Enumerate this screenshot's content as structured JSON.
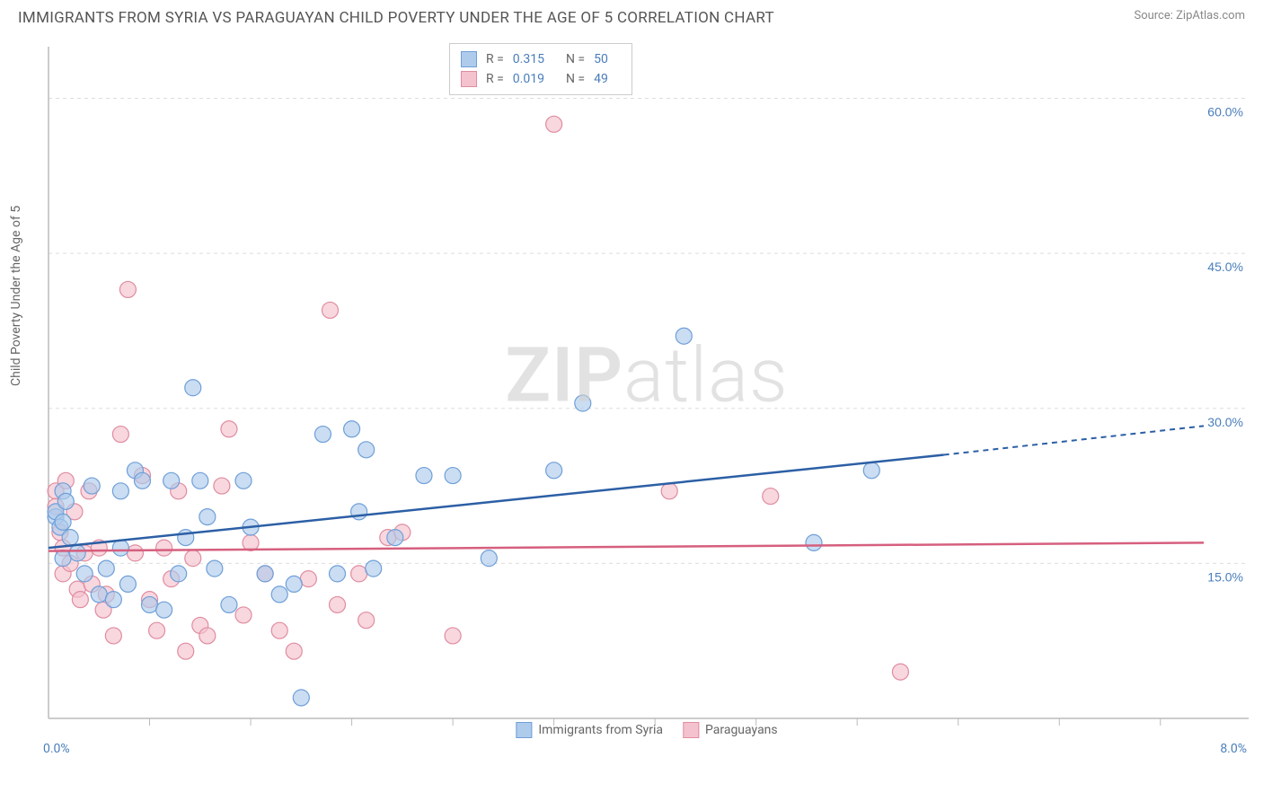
{
  "title": "IMMIGRANTS FROM SYRIA VS PARAGUAYAN CHILD POVERTY UNDER THE AGE OF 5 CORRELATION CHART",
  "source": "Source: ZipAtlas.com",
  "y_axis_label": "Child Poverty Under the Age of 5",
  "watermark": {
    "part1": "ZIP",
    "part2": "atlas"
  },
  "chart": {
    "type": "scatter",
    "background_color": "#ffffff",
    "grid_color": "#dddddd",
    "axis_color": "#bbbbbb",
    "xlim": [
      0.0,
      8.0
    ],
    "ylim": [
      0.0,
      65.0
    ],
    "x_ticks": [
      0.0,
      8.0
    ],
    "x_tick_labels": [
      "0.0%",
      "8.0%"
    ],
    "x_minor_ticks": [
      0.7,
      1.4,
      2.1,
      2.8,
      3.5,
      4.2,
      4.9,
      5.6,
      6.3,
      7.0,
      7.7
    ],
    "y_ticks": [
      15.0,
      30.0,
      45.0,
      60.0
    ],
    "y_tick_labels": [
      "15.0%",
      "30.0%",
      "45.0%",
      "60.0%"
    ],
    "series": [
      {
        "name": "Immigrants from Syria",
        "color_fill": "#aecbeb",
        "color_stroke": "#6f9fd8",
        "trend_color": "#2c5fa5",
        "r_value": "0.315",
        "n_value": "50",
        "marker_radius": 9,
        "trend": {
          "x1": 0.0,
          "y1": 16.5,
          "x2": 6.2,
          "y2": 25.5,
          "x2_dash": 8.0,
          "y2_dash": 28.3
        },
        "points": [
          [
            0.05,
            19.5
          ],
          [
            0.05,
            20.0
          ],
          [
            0.08,
            18.5
          ],
          [
            0.1,
            19.0
          ],
          [
            0.1,
            15.5
          ],
          [
            0.1,
            22.0
          ],
          [
            0.15,
            17.5
          ],
          [
            0.2,
            16.0
          ],
          [
            0.25,
            14.0
          ],
          [
            0.3,
            22.5
          ],
          [
            0.35,
            12.0
          ],
          [
            0.4,
            14.5
          ],
          [
            0.45,
            11.5
          ],
          [
            0.5,
            22.0
          ],
          [
            0.5,
            16.5
          ],
          [
            0.55,
            13.0
          ],
          [
            0.6,
            24.0
          ],
          [
            0.65,
            23.0
          ],
          [
            0.7,
            11.0
          ],
          [
            0.8,
            10.5
          ],
          [
            0.85,
            23.0
          ],
          [
            0.9,
            14.0
          ],
          [
            0.95,
            17.5
          ],
          [
            1.0,
            32.0
          ],
          [
            1.05,
            23.0
          ],
          [
            1.1,
            19.5
          ],
          [
            1.15,
            14.5
          ],
          [
            1.25,
            11.0
          ],
          [
            1.35,
            23.0
          ],
          [
            1.4,
            18.5
          ],
          [
            1.5,
            14.0
          ],
          [
            1.6,
            12.0
          ],
          [
            1.7,
            13.0
          ],
          [
            1.75,
            2.0
          ],
          [
            1.9,
            27.5
          ],
          [
            2.0,
            14.0
          ],
          [
            2.1,
            28.0
          ],
          [
            2.15,
            20.0
          ],
          [
            2.2,
            26.0
          ],
          [
            2.25,
            14.5
          ],
          [
            2.4,
            17.5
          ],
          [
            2.6,
            23.5
          ],
          [
            2.8,
            23.5
          ],
          [
            3.05,
            15.5
          ],
          [
            3.5,
            24.0
          ],
          [
            3.7,
            30.5
          ],
          [
            4.4,
            37.0
          ],
          [
            5.3,
            17.0
          ],
          [
            5.7,
            24.0
          ],
          [
            0.12,
            21.0
          ]
        ]
      },
      {
        "name": "Paraguayans",
        "color_fill": "#f4c2ce",
        "color_stroke": "#e08ca0",
        "trend_color": "#d65f7e",
        "r_value": "0.019",
        "n_value": "49",
        "marker_radius": 9,
        "trend": {
          "x1": 0.0,
          "y1": 16.2,
          "x2": 8.0,
          "y2": 17.0,
          "x2_dash": 8.0,
          "y2_dash": 17.0
        },
        "points": [
          [
            0.05,
            22.0
          ],
          [
            0.05,
            20.5
          ],
          [
            0.08,
            18.0
          ],
          [
            0.1,
            16.5
          ],
          [
            0.1,
            14.0
          ],
          [
            0.12,
            23.0
          ],
          [
            0.15,
            15.0
          ],
          [
            0.18,
            20.0
          ],
          [
            0.2,
            12.5
          ],
          [
            0.22,
            11.5
          ],
          [
            0.25,
            16.0
          ],
          [
            0.28,
            22.0
          ],
          [
            0.3,
            13.0
          ],
          [
            0.35,
            16.5
          ],
          [
            0.38,
            10.5
          ],
          [
            0.4,
            12.0
          ],
          [
            0.45,
            8.0
          ],
          [
            0.5,
            27.5
          ],
          [
            0.55,
            41.5
          ],
          [
            0.6,
            16.0
          ],
          [
            0.65,
            23.5
          ],
          [
            0.7,
            11.5
          ],
          [
            0.75,
            8.5
          ],
          [
            0.8,
            16.5
          ],
          [
            0.85,
            13.5
          ],
          [
            0.9,
            22.0
          ],
          [
            0.95,
            6.5
          ],
          [
            1.0,
            15.5
          ],
          [
            1.05,
            9.0
          ],
          [
            1.1,
            8.0
          ],
          [
            1.2,
            22.5
          ],
          [
            1.25,
            28.0
          ],
          [
            1.35,
            10.0
          ],
          [
            1.4,
            17.0
          ],
          [
            1.5,
            14.0
          ],
          [
            1.6,
            8.5
          ],
          [
            1.7,
            6.5
          ],
          [
            1.8,
            13.5
          ],
          [
            1.95,
            39.5
          ],
          [
            2.0,
            11.0
          ],
          [
            2.15,
            14.0
          ],
          [
            2.2,
            9.5
          ],
          [
            2.35,
            17.5
          ],
          [
            2.45,
            18.0
          ],
          [
            2.8,
            8.0
          ],
          [
            3.5,
            57.5
          ],
          [
            4.3,
            22.0
          ],
          [
            5.0,
            21.5
          ],
          [
            5.9,
            4.5
          ]
        ]
      }
    ],
    "legend_top": {
      "r_label": "R =",
      "n_label": "N ="
    },
    "legend_bottom": [
      {
        "label": "Immigrants from Syria",
        "fill": "#aecbeb",
        "stroke": "#6f9fd8"
      },
      {
        "label": "Paraguayans",
        "fill": "#f4c2ce",
        "stroke": "#e08ca0"
      }
    ]
  }
}
